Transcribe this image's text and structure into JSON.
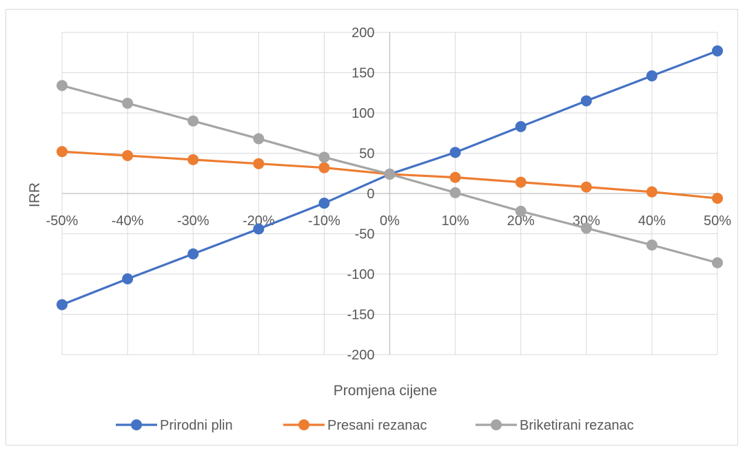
{
  "chart_data": {
    "type": "line",
    "title": "",
    "xlabel": "Promjena cijene",
    "ylabel": "IRR",
    "categories": [
      "-50%",
      "-40%",
      "-30%",
      "-20%",
      "-10%",
      "0%",
      "10%",
      "20%",
      "30%",
      "40%",
      "50%"
    ],
    "ylim": [
      -200,
      200
    ],
    "yticks": [
      200,
      150,
      100,
      50,
      0,
      -50,
      -100,
      -150,
      -200
    ],
    "grid": true,
    "legend_position": "bottom",
    "series": [
      {
        "name": "Prirodni plin",
        "color": "#4472C4",
        "values": [
          -138,
          -106,
          -75,
          -44,
          -12,
          24,
          51,
          83,
          115,
          146,
          177
        ]
      },
      {
        "name": "Presani rezanac",
        "color": "#ED7D31",
        "values": [
          52,
          47,
          42,
          37,
          32,
          24,
          20,
          14,
          8,
          2,
          -6
        ]
      },
      {
        "name": "Briketirani rezanac",
        "color": "#A5A5A5",
        "values": [
          134,
          112,
          90,
          68,
          45,
          24,
          1,
          -22,
          -43,
          -64,
          -86
        ]
      }
    ]
  }
}
